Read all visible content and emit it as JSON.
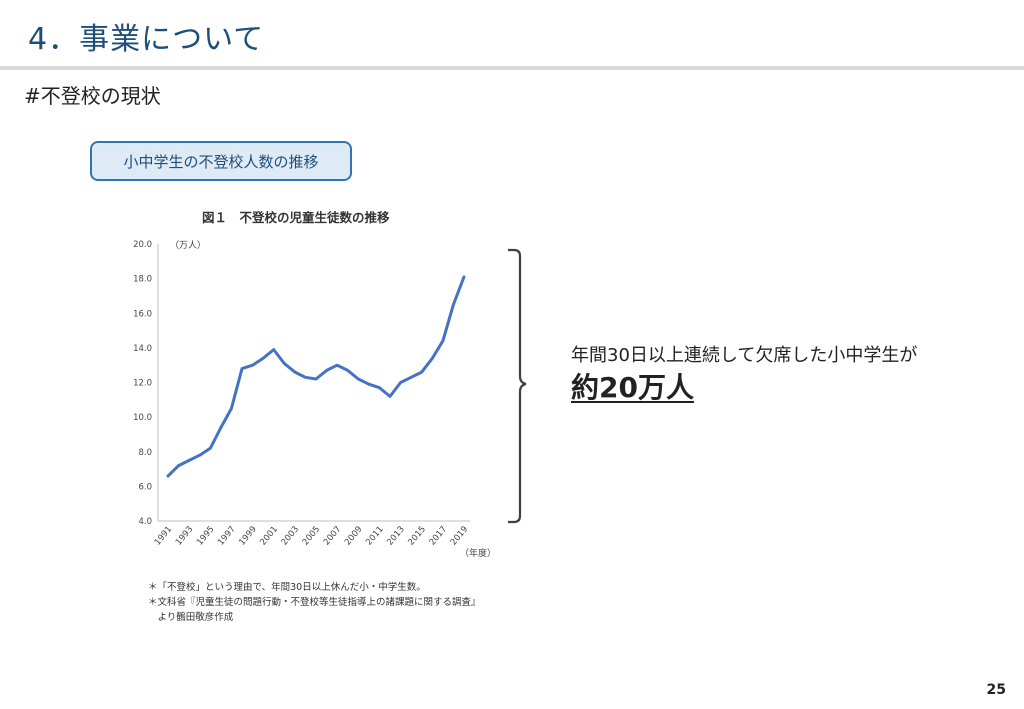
{
  "header": {
    "title": "4．事業について",
    "subtitle": "#不登校の現状"
  },
  "section_label": "小中学生の不登校人数の推移",
  "chart_data": {
    "type": "line",
    "title": "図１　不登校の児童生徒数の推移",
    "yunit": "（万人）",
    "xunit": "（年度）",
    "ylim": [
      4.0,
      20.0
    ],
    "yticks": [
      "20.0",
      "18.0",
      "16.0",
      "14.0",
      "12.0",
      "10.0",
      "8.0",
      "6.0",
      "4.0"
    ],
    "xticks": [
      "1991",
      "1993",
      "1995",
      "1997",
      "1999",
      "2001",
      "2003",
      "2005",
      "2007",
      "2009",
      "2011",
      "2013",
      "2015",
      "2017",
      "2019"
    ],
    "grid": false,
    "line_color": "#4472c4",
    "x": [
      1991,
      1992,
      1993,
      1994,
      1995,
      1996,
      1997,
      1998,
      1999,
      2000,
      2001,
      2002,
      2003,
      2004,
      2005,
      2006,
      2007,
      2008,
      2009,
      2010,
      2011,
      2012,
      2013,
      2014,
      2015,
      2016,
      2017,
      2018,
      2019
    ],
    "series": [
      {
        "values": [
          6.6,
          7.2,
          7.5,
          7.8,
          8.2,
          9.4,
          10.5,
          12.8,
          13.0,
          13.4,
          13.9,
          13.1,
          12.6,
          12.3,
          12.2,
          12.7,
          13.0,
          12.7,
          12.2,
          11.9,
          11.7,
          11.2,
          12.0,
          12.3,
          12.6,
          13.4,
          14.4,
          16.5,
          18.1
        ]
      }
    ],
    "notes": [
      "＊「不登校」という理由で、年間30日以上休んだ小・中学生数。",
      "＊文科省『児童生徒の問題行動・不登校等生徒指導上の諸課題に関する調査』",
      "　より鶴田敬彦作成"
    ]
  },
  "callout": {
    "text": "年間30日以上連続して欠席した小中学生が",
    "highlight": "約20万人"
  },
  "page_number": "25"
}
